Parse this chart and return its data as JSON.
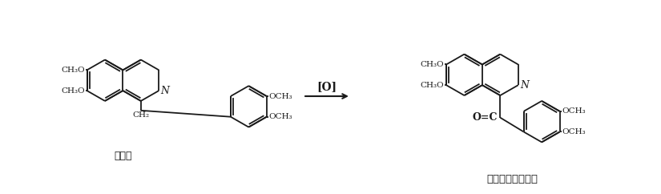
{
  "bg_color": "#ffffff",
  "fig_width": 8.25,
  "fig_height": 2.42,
  "dpi": 100,
  "label_papaverine": "羂粟碱",
  "label_product": "最终产物为鸦片黄",
  "reaction_label": "[O]",
  "font_size_label": 9,
  "font_size_chem": 7.5,
  "font_size_arrow": 9,
  "text_color": "#1a1a1a"
}
